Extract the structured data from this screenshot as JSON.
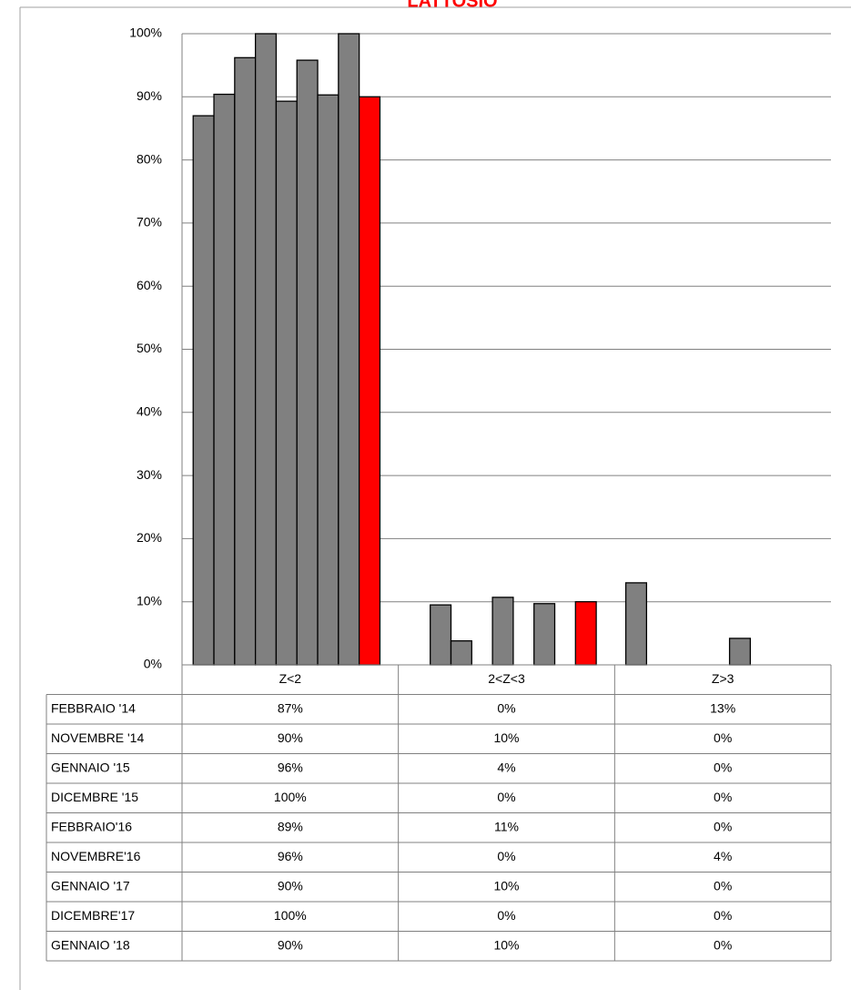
{
  "chart_data": {
    "type": "bar",
    "title": "LATTOSIO",
    "categories": [
      "Z<2",
      "2<Z<3",
      "Z>3"
    ],
    "ylim": [
      0,
      100
    ],
    "yticks": [
      {
        "value": 0,
        "label": "0%"
      },
      {
        "value": 10,
        "label": "10%"
      },
      {
        "value": 20,
        "label": "20%"
      },
      {
        "value": 30,
        "label": "30%"
      },
      {
        "value": 40,
        "label": "40%"
      },
      {
        "value": 50,
        "label": "50%"
      },
      {
        "value": 60,
        "label": "60%"
      },
      {
        "value": 70,
        "label": "70%"
      },
      {
        "value": 80,
        "label": "80%"
      },
      {
        "value": 90,
        "label": "90%"
      },
      {
        "value": 100,
        "label": "100%"
      }
    ],
    "grid": true,
    "series": [
      {
        "name": "FEBBRAIO '14",
        "color": "#808080",
        "values": [
          87,
          0,
          13
        ],
        "value_labels": [
          "87%",
          "0%",
          "13%"
        ]
      },
      {
        "name": "NOVEMBRE '14",
        "color": "#808080",
        "values": [
          90.4,
          9.5,
          0
        ],
        "value_labels": [
          "90%",
          "10%",
          "0%"
        ]
      },
      {
        "name": "GENNAIO '15",
        "color": "#808080",
        "values": [
          96.2,
          3.8,
          0
        ],
        "value_labels": [
          "96%",
          "4%",
          "0%"
        ]
      },
      {
        "name": "DICEMBRE '15",
        "color": "#808080",
        "values": [
          100,
          0,
          0
        ],
        "value_labels": [
          "100%",
          "0%",
          "0%"
        ]
      },
      {
        "name": "FEBBRAIO'16",
        "color": "#808080",
        "values": [
          89.3,
          10.7,
          0
        ],
        "value_labels": [
          "89%",
          "11%",
          "0%"
        ]
      },
      {
        "name": "NOVEMBRE'16",
        "color": "#808080",
        "values": [
          95.8,
          0,
          4.2
        ],
        "value_labels": [
          "96%",
          "0%",
          "4%"
        ]
      },
      {
        "name": "GENNAIO '17",
        "color": "#808080",
        "values": [
          90.3,
          9.7,
          0
        ],
        "value_labels": [
          "90%",
          "10%",
          "0%"
        ]
      },
      {
        "name": "DICEMBRE'17",
        "color": "#808080",
        "values": [
          100,
          0,
          0
        ],
        "value_labels": [
          "100%",
          "0%",
          "0%"
        ]
      },
      {
        "name": "GENNAIO '18",
        "color": "#ff0000",
        "values": [
          90,
          10,
          0
        ],
        "value_labels": [
          "90%",
          "10%",
          "0%"
        ]
      }
    ]
  }
}
